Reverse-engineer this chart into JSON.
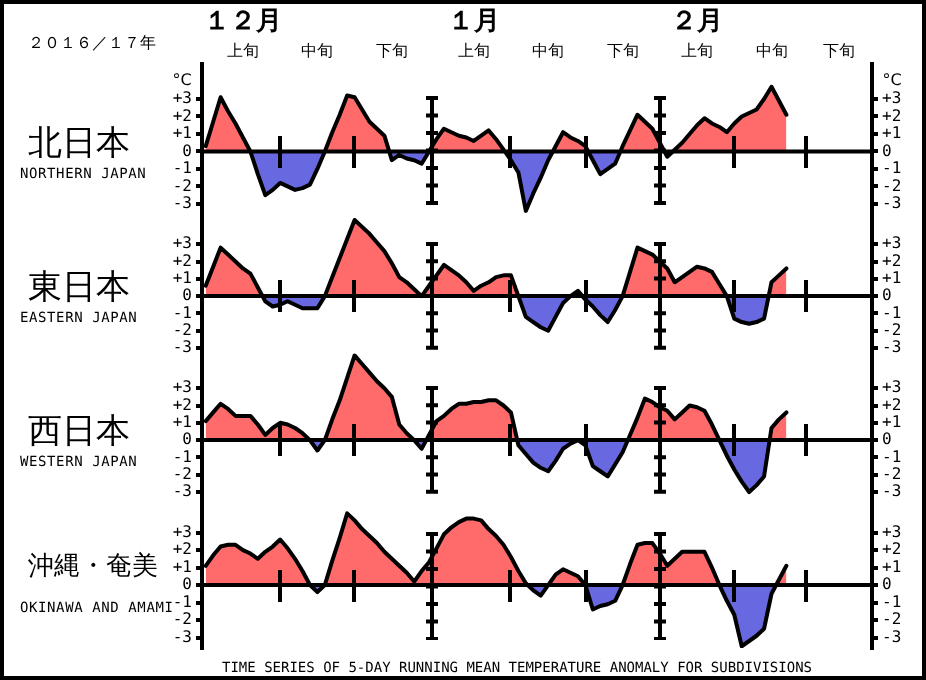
{
  "chart_data": [
    {
      "type": "area",
      "title": "北日本",
      "subtitle": "NORTHERN JAPAN",
      "ylabel": "°C",
      "y2label": "°C",
      "annotations": [
        "２０１６／１７年",
        "１２月",
        "１月",
        "２月"
      ],
      "marker": "none",
      "categories": [
        null,
        null,
        null,
        null,
        null,
        "上旬",
        null,
        null,
        null,
        null,
        null,
        null,
        null,
        null,
        null,
        "中旬",
        null,
        null,
        null,
        null,
        null,
        null,
        null,
        null,
        null,
        "下旬",
        null,
        null,
        null,
        null,
        null,
        null,
        null,
        null,
        null,
        null,
        "上旬",
        null,
        null,
        null,
        null,
        null,
        null,
        null,
        null,
        null,
        "中旬",
        null,
        null,
        null,
        null,
        null,
        null,
        null,
        null,
        null,
        "下旬",
        null,
        null,
        null,
        null,
        null,
        null,
        null,
        null,
        null,
        "上旬",
        null,
        null,
        null,
        null,
        null,
        null,
        null,
        null,
        null,
        "中旬",
        null,
        null,
        null,
        null,
        null,
        null,
        null,
        null,
        "下旬",
        null,
        null,
        null,
        null
      ],
      "series": [
        {
          "color": "#000000",
          "values": [
            0.3,
            1.7,
            3.1,
            2.3,
            1.6,
            0.8,
            0,
            -1.3,
            -2.5,
            -2.2,
            -1.8,
            -2.0,
            -2.2,
            -2.1,
            -1.9,
            -1.0,
            0,
            1.1,
            2.1,
            3.2,
            3.1,
            2.4,
            1.7,
            1.3,
            0.9,
            -0.5,
            -0.2,
            -0.4,
            -0.5,
            -0.7,
            0,
            0.7,
            1.3,
            1.1,
            0.9,
            0.8,
            0.6,
            0.9,
            1.2,
            0.7,
            0.1,
            -0.5,
            -1.2,
            -3.4,
            -2.4,
            -1.5,
            -0.5,
            0.3,
            1.1,
            0.8,
            0.6,
            0.3,
            -0.5,
            -1.3,
            -1.0,
            -0.7,
            0.3,
            1.2,
            2.1,
            1.7,
            1.3,
            0.5,
            -0.3,
            0.1,
            0.5,
            1.0,
            1.5,
            1.9,
            1.6,
            1.4,
            1.1,
            1.6,
            2.0,
            2.2,
            2.4,
            3.0,
            3.7,
            2.9,
            2.1,
            null,
            null,
            null,
            null,
            null,
            null,
            null,
            null,
            null,
            null,
            null
          ],
          "colors": [
            "#ff6b6b",
            "#ff6b6b",
            "#ff6b6b",
            "#ff6b6b",
            "#ff6b6b",
            "#ff6b6b",
            "#ff6b6b",
            "#6868e0",
            "#6868e0",
            "#6868e0",
            "#6868e0",
            "#6868e0",
            "#6868e0",
            "#6868e0",
            "#6868e0",
            "#6868e0",
            "#ff6b6b",
            "#ff6b6b",
            "#ff6b6b",
            "#ff6b6b",
            "#ff6b6b",
            "#ff6b6b",
            "#ff6b6b",
            "#ff6b6b",
            "#ff6b6b",
            "#6868e0",
            "#6868e0",
            "#6868e0",
            "#6868e0",
            "#6868e0",
            "#ff6b6b",
            "#ff6b6b",
            "#ff6b6b",
            "#ff6b6b",
            "#ff6b6b",
            "#ff6b6b",
            "#ff6b6b",
            "#ff6b6b",
            "#ff6b6b",
            "#ff6b6b",
            "#ff6b6b",
            "#6868e0",
            "#6868e0",
            "#6868e0",
            "#6868e0",
            "#6868e0",
            "#6868e0",
            "#ff6b6b",
            "#ff6b6b",
            "#ff6b6b",
            "#ff6b6b",
            "#ff6b6b",
            "#6868e0",
            "#6868e0",
            "#6868e0",
            "#6868e0",
            "#ff6b6b",
            "#ff6b6b",
            "#ff6b6b",
            "#ff6b6b",
            "#ff6b6b",
            "#ff6b6b",
            "#6868e0",
            "#ff6b6b",
            "#ff6b6b",
            "#ff6b6b",
            "#ff6b6b",
            "#ff6b6b",
            "#ff6b6b",
            "#ff6b6b",
            "#ff6b6b",
            "#ff6b6b",
            "#ff6b6b",
            "#ff6b6b",
            "#ff6b6b",
            "#ff6b6b",
            "#ff6b6b",
            "#ff6b6b",
            "#ff6b6b",
            null,
            null,
            null,
            null,
            null,
            null,
            null,
            null,
            null,
            null,
            null
          ]
        }
      ],
      "ylim": [
        -3.6,
        5
      ],
      "yticks": [
        {
          "value": 3,
          "label": "+3"
        },
        {
          "value": 2,
          "label": "+2"
        },
        {
          "value": 1,
          "label": "+1"
        },
        {
          "value": 0,
          "label": "0"
        },
        {
          "value": -1,
          "label": "-1"
        },
        {
          "value": -2,
          "label": "-2"
        },
        {
          "value": -3,
          "label": "-3"
        }
      ],
      "y2lim": [
        -3.6,
        5
      ],
      "y2ticks": [
        {
          "value": 3,
          "label": "+3"
        },
        {
          "value": 2,
          "label": "+2"
        },
        {
          "value": 1,
          "label": "+1"
        },
        {
          "value": 0,
          "label": "0"
        },
        {
          "value": -1,
          "label": "-1"
        },
        {
          "value": -2,
          "label": "-2"
        },
        {
          "value": -3,
          "label": "-3"
        }
      ]
    },
    {
      "type": "area",
      "title": "東日本",
      "subtitle": "EASTERN JAPAN",
      "marker": "none",
      "categories": [
        null,
        null,
        null,
        null,
        null,
        null,
        null,
        null,
        null,
        null,
        null,
        null,
        null,
        null,
        null,
        null,
        null,
        null,
        null,
        null,
        null,
        null,
        null,
        null,
        null,
        null,
        null,
        null,
        null,
        null,
        null,
        null,
        null,
        null,
        null,
        null,
        null,
        null,
        null,
        null,
        null,
        null,
        null,
        null,
        null,
        null,
        null,
        null,
        null,
        null,
        null,
        null,
        null,
        null,
        null,
        null,
        null,
        null,
        null,
        null,
        null,
        null,
        null,
        null,
        null,
        null,
        null,
        null,
        null,
        null,
        null,
        null,
        null,
        null,
        null,
        null,
        null,
        null,
        null,
        null,
        null,
        null,
        null,
        null,
        null,
        null,
        null,
        null,
        null,
        null
      ],
      "series": [
        {
          "color": "#000000",
          "values": [
            0.6,
            1.7,
            2.8,
            2.4,
            2.0,
            1.6,
            1.3,
            0.5,
            -0.3,
            -0.6,
            -0.5,
            -0.3,
            -0.5,
            -0.7,
            -0.7,
            -0.7,
            0,
            1.1,
            2.2,
            3.3,
            4.4,
            4.0,
            3.6,
            3.1,
            2.6,
            1.9,
            1.1,
            0.8,
            0.4,
            0,
            0.6,
            1.2,
            1.8,
            1.5,
            1.2,
            0.8,
            0.3,
            0.6,
            0.8,
            1.1,
            1.2,
            1.2,
            0,
            -1.2,
            -1.5,
            -1.8,
            -2.0,
            -1.2,
            -0.4,
            0,
            0.3,
            -0.2,
            -0.6,
            -1.1,
            -1.5,
            -0.8,
            0,
            1.4,
            2.8,
            2.6,
            2.4,
            2.0,
            1.6,
            0.8,
            1.1,
            1.4,
            1.7,
            1.6,
            1.4,
            0.7,
            0,
            -1.3,
            -1.5,
            -1.6,
            -1.5,
            -1.3,
            0.8,
            1.2,
            1.6,
            null,
            null,
            null,
            null,
            null,
            null,
            null,
            null,
            null,
            null,
            null
          ],
          "colors": [
            "#ff6b6b",
            "#ff6b6b",
            "#ff6b6b",
            "#ff6b6b",
            "#ff6b6b",
            "#ff6b6b",
            "#ff6b6b",
            "#ff6b6b",
            "#6868e0",
            "#6868e0",
            "#6868e0",
            "#6868e0",
            "#6868e0",
            "#6868e0",
            "#6868e0",
            "#6868e0",
            "#ff6b6b",
            "#ff6b6b",
            "#ff6b6b",
            "#ff6b6b",
            "#ff6b6b",
            "#ff6b6b",
            "#ff6b6b",
            "#ff6b6b",
            "#ff6b6b",
            "#ff6b6b",
            "#ff6b6b",
            "#ff6b6b",
            "#ff6b6b",
            "#ff6b6b",
            "#ff6b6b",
            "#ff6b6b",
            "#ff6b6b",
            "#ff6b6b",
            "#ff6b6b",
            "#ff6b6b",
            "#ff6b6b",
            "#ff6b6b",
            "#ff6b6b",
            "#ff6b6b",
            "#ff6b6b",
            "#ff6b6b",
            "#ff6b6b",
            "#6868e0",
            "#6868e0",
            "#6868e0",
            "#6868e0",
            "#6868e0",
            "#6868e0",
            "#ff6b6b",
            "#ff6b6b",
            "#6868e0",
            "#6868e0",
            "#6868e0",
            "#6868e0",
            "#6868e0",
            "#ff6b6b",
            "#ff6b6b",
            "#ff6b6b",
            "#ff6b6b",
            "#ff6b6b",
            "#ff6b6b",
            "#ff6b6b",
            "#ff6b6b",
            "#ff6b6b",
            "#ff6b6b",
            "#ff6b6b",
            "#ff6b6b",
            "#ff6b6b",
            "#ff6b6b",
            "#ff6b6b",
            "#6868e0",
            "#6868e0",
            "#6868e0",
            "#6868e0",
            "#6868e0",
            "#ff6b6b",
            "#ff6b6b",
            "#ff6b6b",
            null,
            null,
            null,
            null,
            null,
            null,
            null,
            null,
            null,
            null,
            null
          ]
        }
      ],
      "ylim": [
        -3.6,
        5
      ],
      "yticks": [
        {
          "value": 3,
          "label": "+3"
        },
        {
          "value": 2,
          "label": "+2"
        },
        {
          "value": 1,
          "label": "+1"
        },
        {
          "value": 0,
          "label": "0"
        },
        {
          "value": -1,
          "label": "-1"
        },
        {
          "value": -2,
          "label": "-2"
        },
        {
          "value": -3,
          "label": "-3"
        }
      ],
      "y2lim": [
        -3.6,
        5
      ],
      "y2ticks": [
        {
          "value": 3,
          "label": "+3"
        },
        {
          "value": 2,
          "label": "+2"
        },
        {
          "value": 1,
          "label": "+1"
        },
        {
          "value": 0,
          "label": "0"
        },
        {
          "value": -1,
          "label": "-1"
        },
        {
          "value": -2,
          "label": "-2"
        },
        {
          "value": -3,
          "label": "-3"
        }
      ]
    },
    {
      "type": "area",
      "title": "西日本",
      "subtitle": "WESTERN JAPAN",
      "marker": "none",
      "categories": [
        null,
        null,
        null,
        null,
        null,
        null,
        null,
        null,
        null,
        null,
        null,
        null,
        null,
        null,
        null,
        null,
        null,
        null,
        null,
        null,
        null,
        null,
        null,
        null,
        null,
        null,
        null,
        null,
        null,
        null,
        null,
        null,
        null,
        null,
        null,
        null,
        null,
        null,
        null,
        null,
        null,
        null,
        null,
        null,
        null,
        null,
        null,
        null,
        null,
        null,
        null,
        null,
        null,
        null,
        null,
        null,
        null,
        null,
        null,
        null,
        null,
        null,
        null,
        null,
        null,
        null,
        null,
        null,
        null,
        null,
        null,
        null,
        null,
        null,
        null,
        null,
        null,
        null,
        null,
        null,
        null,
        null,
        null,
        null,
        null,
        null,
        null,
        null,
        null,
        null
      ],
      "series": [
        {
          "color": "#000000",
          "values": [
            1.1,
            1.6,
            2.1,
            1.8,
            1.4,
            1.4,
            1.4,
            0.9,
            0.3,
            0.7,
            1.0,
            0.9,
            0.7,
            0.4,
            0,
            -0.6,
            0,
            1.2,
            2.3,
            3.6,
            4.9,
            4.4,
            3.9,
            3.4,
            3.0,
            2.5,
            0.9,
            0.4,
            0,
            -0.5,
            0.3,
            1.1,
            1.4,
            1.8,
            2.1,
            2.1,
            2.2,
            2.2,
            2.3,
            2.3,
            2.0,
            1.6,
            -0.3,
            -0.8,
            -1.3,
            -1.6,
            -1.8,
            -1.2,
            -0.5,
            -0.2,
            0,
            -0.3,
            -1.5,
            -1.8,
            -2.1,
            -1.4,
            -0.7,
            0.3,
            1.3,
            2.4,
            2.2,
            1.9,
            1.7,
            1.2,
            1.6,
            2.0,
            1.9,
            1.7,
            0.9,
            0,
            -0.9,
            -1.7,
            -2.4,
            -3.0,
            -2.6,
            -2.1,
            0.7,
            1.2,
            1.6,
            null,
            null,
            null,
            null,
            null,
            null,
            null,
            null,
            null,
            null,
            null
          ],
          "colors": [
            "#ff6b6b",
            "#ff6b6b",
            "#ff6b6b",
            "#ff6b6b",
            "#ff6b6b",
            "#ff6b6b",
            "#ff6b6b",
            "#ff6b6b",
            "#ff6b6b",
            "#ff6b6b",
            "#ff6b6b",
            "#ff6b6b",
            "#ff6b6b",
            "#ff6b6b",
            "#ff6b6b",
            "#6868e0",
            "#ff6b6b",
            "#ff6b6b",
            "#ff6b6b",
            "#ff6b6b",
            "#ff6b6b",
            "#ff6b6b",
            "#ff6b6b",
            "#ff6b6b",
            "#ff6b6b",
            "#ff6b6b",
            "#ff6b6b",
            "#ff6b6b",
            "#ff6b6b",
            "#6868e0",
            "#ff6b6b",
            "#ff6b6b",
            "#ff6b6b",
            "#ff6b6b",
            "#ff6b6b",
            "#ff6b6b",
            "#ff6b6b",
            "#ff6b6b",
            "#ff6b6b",
            "#ff6b6b",
            "#ff6b6b",
            "#ff6b6b",
            "#6868e0",
            "#6868e0",
            "#6868e0",
            "#6868e0",
            "#6868e0",
            "#6868e0",
            "#6868e0",
            "#6868e0",
            "#ff6b6b",
            "#6868e0",
            "#6868e0",
            "#6868e0",
            "#6868e0",
            "#6868e0",
            "#6868e0",
            "#ff6b6b",
            "#ff6b6b",
            "#ff6b6b",
            "#ff6b6b",
            "#ff6b6b",
            "#ff6b6b",
            "#ff6b6b",
            "#ff6b6b",
            "#ff6b6b",
            "#ff6b6b",
            "#ff6b6b",
            "#ff6b6b",
            "#ff6b6b",
            "#6868e0",
            "#6868e0",
            "#6868e0",
            "#6868e0",
            "#6868e0",
            "#6868e0",
            "#ff6b6b",
            "#ff6b6b",
            "#ff6b6b",
            null,
            null,
            null,
            null,
            null,
            null,
            null,
            null,
            null,
            null,
            null
          ]
        }
      ],
      "ylim": [
        -3.6,
        5
      ],
      "yticks": [
        {
          "value": 3,
          "label": "+3"
        },
        {
          "value": 2,
          "label": "+2"
        },
        {
          "value": 1,
          "label": "+1"
        },
        {
          "value": 0,
          "label": "0"
        },
        {
          "value": -1,
          "label": "-1"
        },
        {
          "value": -2,
          "label": "-2"
        },
        {
          "value": -3,
          "label": "-3"
        }
      ],
      "y2lim": [
        -3.6,
        5
      ],
      "y2ticks": [
        {
          "value": 3,
          "label": "+3"
        },
        {
          "value": 2,
          "label": "+2"
        },
        {
          "value": 1,
          "label": "+1"
        },
        {
          "value": 0,
          "label": "0"
        },
        {
          "value": -1,
          "label": "-1"
        },
        {
          "value": -2,
          "label": "-2"
        },
        {
          "value": -3,
          "label": "-3"
        }
      ]
    },
    {
      "type": "area",
      "title": "沖縄・奄美",
      "subtitle": "OKINAWA AND AMAMI",
      "annotations": [
        "TIME SERIES OF 5-DAY RUNNING MEAN TEMPERATURE ANOMALY FOR SUBDIVISIONS"
      ],
      "marker": "none",
      "categories": [
        null,
        null,
        null,
        null,
        null,
        null,
        null,
        null,
        null,
        null,
        null,
        null,
        null,
        null,
        null,
        null,
        null,
        null,
        null,
        null,
        null,
        null,
        null,
        null,
        null,
        null,
        null,
        null,
        null,
        null,
        null,
        null,
        null,
        null,
        null,
        null,
        null,
        null,
        null,
        null,
        null,
        null,
        null,
        null,
        null,
        null,
        null,
        null,
        null,
        null,
        null,
        null,
        null,
        null,
        null,
        null,
        null,
        null,
        null,
        null,
        null,
        null,
        null,
        null,
        null,
        null,
        null,
        null,
        null,
        null,
        null,
        null,
        null,
        null,
        null,
        null,
        null,
        null,
        null,
        null,
        null,
        null,
        null,
        null,
        null,
        null,
        null,
        null,
        null,
        null
      ],
      "series": [
        {
          "color": "#000000",
          "values": [
            1.1,
            1.7,
            2.2,
            2.3,
            2.3,
            2.0,
            1.8,
            1.5,
            1.9,
            2.2,
            2.6,
            2.1,
            1.5,
            0.8,
            0,
            -0.4,
            0,
            1.4,
            2.7,
            4.1,
            3.7,
            3.2,
            2.8,
            2.4,
            1.9,
            1.5,
            1.1,
            0.7,
            0.2,
            0.8,
            1.3,
            2.1,
            2.9,
            3.3,
            3.6,
            3.8,
            3.8,
            3.7,
            3.2,
            2.8,
            2.3,
            1.6,
            0.8,
            0.1,
            -0.3,
            -0.6,
            0,
            0.6,
            0.9,
            0.7,
            0.5,
            0,
            -1.4,
            -1.2,
            -1.1,
            -0.9,
            0,
            1.2,
            2.3,
            2.4,
            2.4,
            1.8,
            1.1,
            1.5,
            1.9,
            1.9,
            1.9,
            1.9,
            1.0,
            0,
            -0.9,
            -1.7,
            -3.5,
            -3.2,
            -2.9,
            -2.5,
            -0.5,
            0.3,
            1.1,
            null,
            null,
            null,
            null,
            null,
            null,
            null,
            null,
            null,
            null,
            null
          ],
          "colors": [
            "#ff6b6b",
            "#ff6b6b",
            "#ff6b6b",
            "#ff6b6b",
            "#ff6b6b",
            "#ff6b6b",
            "#ff6b6b",
            "#ff6b6b",
            "#ff6b6b",
            "#ff6b6b",
            "#ff6b6b",
            "#ff6b6b",
            "#ff6b6b",
            "#ff6b6b",
            "#ff6b6b",
            "#6868e0",
            "#ff6b6b",
            "#ff6b6b",
            "#ff6b6b",
            "#ff6b6b",
            "#ff6b6b",
            "#ff6b6b",
            "#ff6b6b",
            "#ff6b6b",
            "#ff6b6b",
            "#ff6b6b",
            "#ff6b6b",
            "#ff6b6b",
            "#ff6b6b",
            "#ff6b6b",
            "#ff6b6b",
            "#ff6b6b",
            "#ff6b6b",
            "#ff6b6b",
            "#ff6b6b",
            "#ff6b6b",
            "#ff6b6b",
            "#ff6b6b",
            "#ff6b6b",
            "#ff6b6b",
            "#ff6b6b",
            "#ff6b6b",
            "#ff6b6b",
            "#ff6b6b",
            "#6868e0",
            "#6868e0",
            "#ff6b6b",
            "#ff6b6b",
            "#ff6b6b",
            "#ff6b6b",
            "#ff6b6b",
            "#ff6b6b",
            "#6868e0",
            "#6868e0",
            "#6868e0",
            "#6868e0",
            "#ff6b6b",
            "#ff6b6b",
            "#ff6b6b",
            "#ff6b6b",
            "#ff6b6b",
            "#ff6b6b",
            "#ff6b6b",
            "#ff6b6b",
            "#ff6b6b",
            "#ff6b6b",
            "#ff6b6b",
            "#ff6b6b",
            "#ff6b6b",
            "#ff6b6b",
            "#6868e0",
            "#6868e0",
            "#6868e0",
            "#6868e0",
            "#6868e0",
            "#6868e0",
            "#6868e0",
            "#ff6b6b",
            "#ff6b6b",
            null,
            null,
            null,
            null,
            null,
            null,
            null,
            null,
            null,
            null,
            null
          ]
        }
      ],
      "ylim": [
        -3.6,
        5
      ],
      "yticks": [
        {
          "value": 3,
          "label": "+3"
        },
        {
          "value": 2,
          "label": "+2"
        },
        {
          "value": 1,
          "label": "+1"
        },
        {
          "value": 0,
          "label": "0"
        },
        {
          "value": -1,
          "label": "-1"
        },
        {
          "value": -2,
          "label": "-2"
        },
        {
          "value": -3,
          "label": "-3"
        }
      ],
      "y2lim": [
        -3.6,
        5
      ],
      "y2ticks": [
        {
          "value": 3,
          "label": "+3"
        },
        {
          "value": 2,
          "label": "+2"
        },
        {
          "value": 1,
          "label": "+1"
        },
        {
          "value": 0,
          "label": "0"
        },
        {
          "value": -1,
          "label": "-1"
        },
        {
          "value": -2,
          "label": "-2"
        },
        {
          "value": -3,
          "label": "-3"
        }
      ]
    }
  ]
}
